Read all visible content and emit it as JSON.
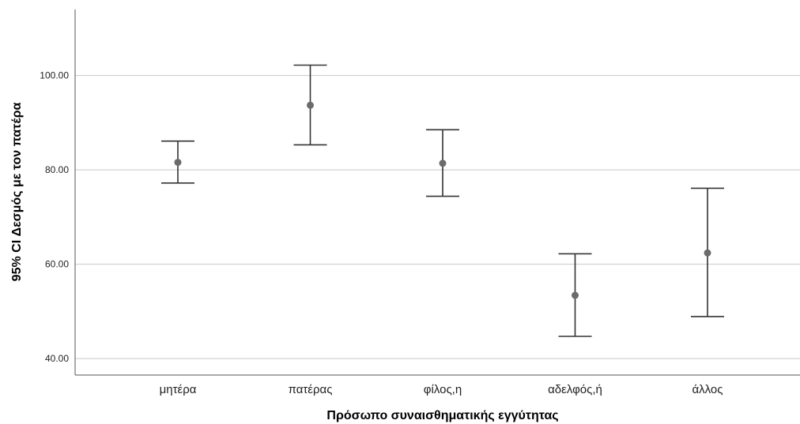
{
  "chart_data": {
    "type": "errorbar",
    "categories": [
      "μητέρα",
      "πατέρας",
      "φίλος,η",
      "αδελφός,ή",
      "άλλος"
    ],
    "means": [
      81.6,
      93.7,
      81.4,
      53.4,
      62.4
    ],
    "ci_lower": [
      77.2,
      85.3,
      74.4,
      44.7,
      48.9
    ],
    "ci_upper": [
      86.1,
      102.2,
      88.5,
      62.2,
      76.1
    ],
    "yticks": [
      "40.00",
      "60.00",
      "80.00",
      "100.00"
    ],
    "ytick_values": [
      40,
      60,
      80,
      100
    ],
    "ylim": [
      36.5,
      114
    ],
    "xlabel": "Πρόσωπο συναισθηματικής εγγύτητας",
    "ylabel": "95% CI Δεσμός με τον πατέρα",
    "grid": "horizontal",
    "colors": {
      "marker": "#6b6b6b",
      "errorbar": "#333333",
      "gridline": "#c8c8c8",
      "axis": "#555555"
    }
  }
}
